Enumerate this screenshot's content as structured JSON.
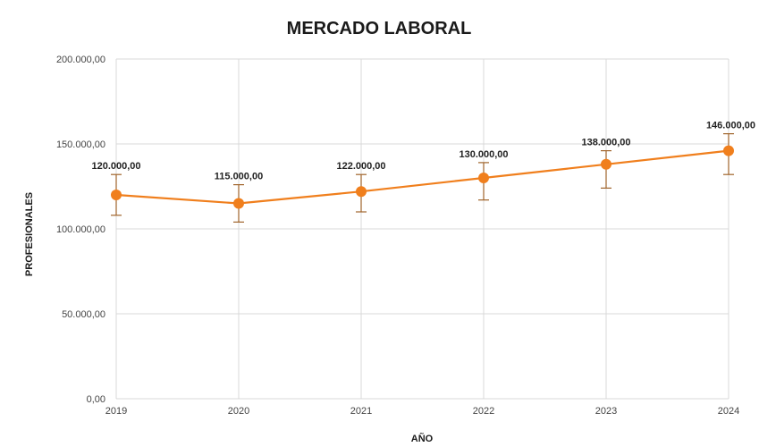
{
  "chart_data": {
    "type": "line",
    "title": "MERCADO LABORAL",
    "xlabel": "AÑO",
    "ylabel": "PROFESIONALES",
    "categories": [
      "2019",
      "2020",
      "2021",
      "2022",
      "2023",
      "2024"
    ],
    "series": [
      {
        "values": [
          120000,
          115000,
          122000,
          130000,
          138000,
          146000
        ],
        "error_low": [
          108000,
          104000,
          110000,
          117000,
          124000,
          132000
        ],
        "error_high": [
          132000,
          126000,
          132000,
          139000,
          146000,
          156000
        ],
        "data_labels": [
          "120.000,00",
          "115.000,00",
          "122.000,00",
          "130.000,00",
          "138.000,00",
          "146.000,00"
        ]
      }
    ],
    "ylim": [
      0,
      200000
    ],
    "y_ticks": [
      0,
      50000,
      100000,
      150000,
      200000
    ],
    "y_tick_labels": [
      "0,00",
      "50.000,00",
      "100.000,00",
      "150.000,00",
      "200.000,00"
    ],
    "grid": true,
    "legend": "none",
    "colors": {
      "line": "#f07f1d",
      "error_bar": "#a0642b"
    }
  }
}
